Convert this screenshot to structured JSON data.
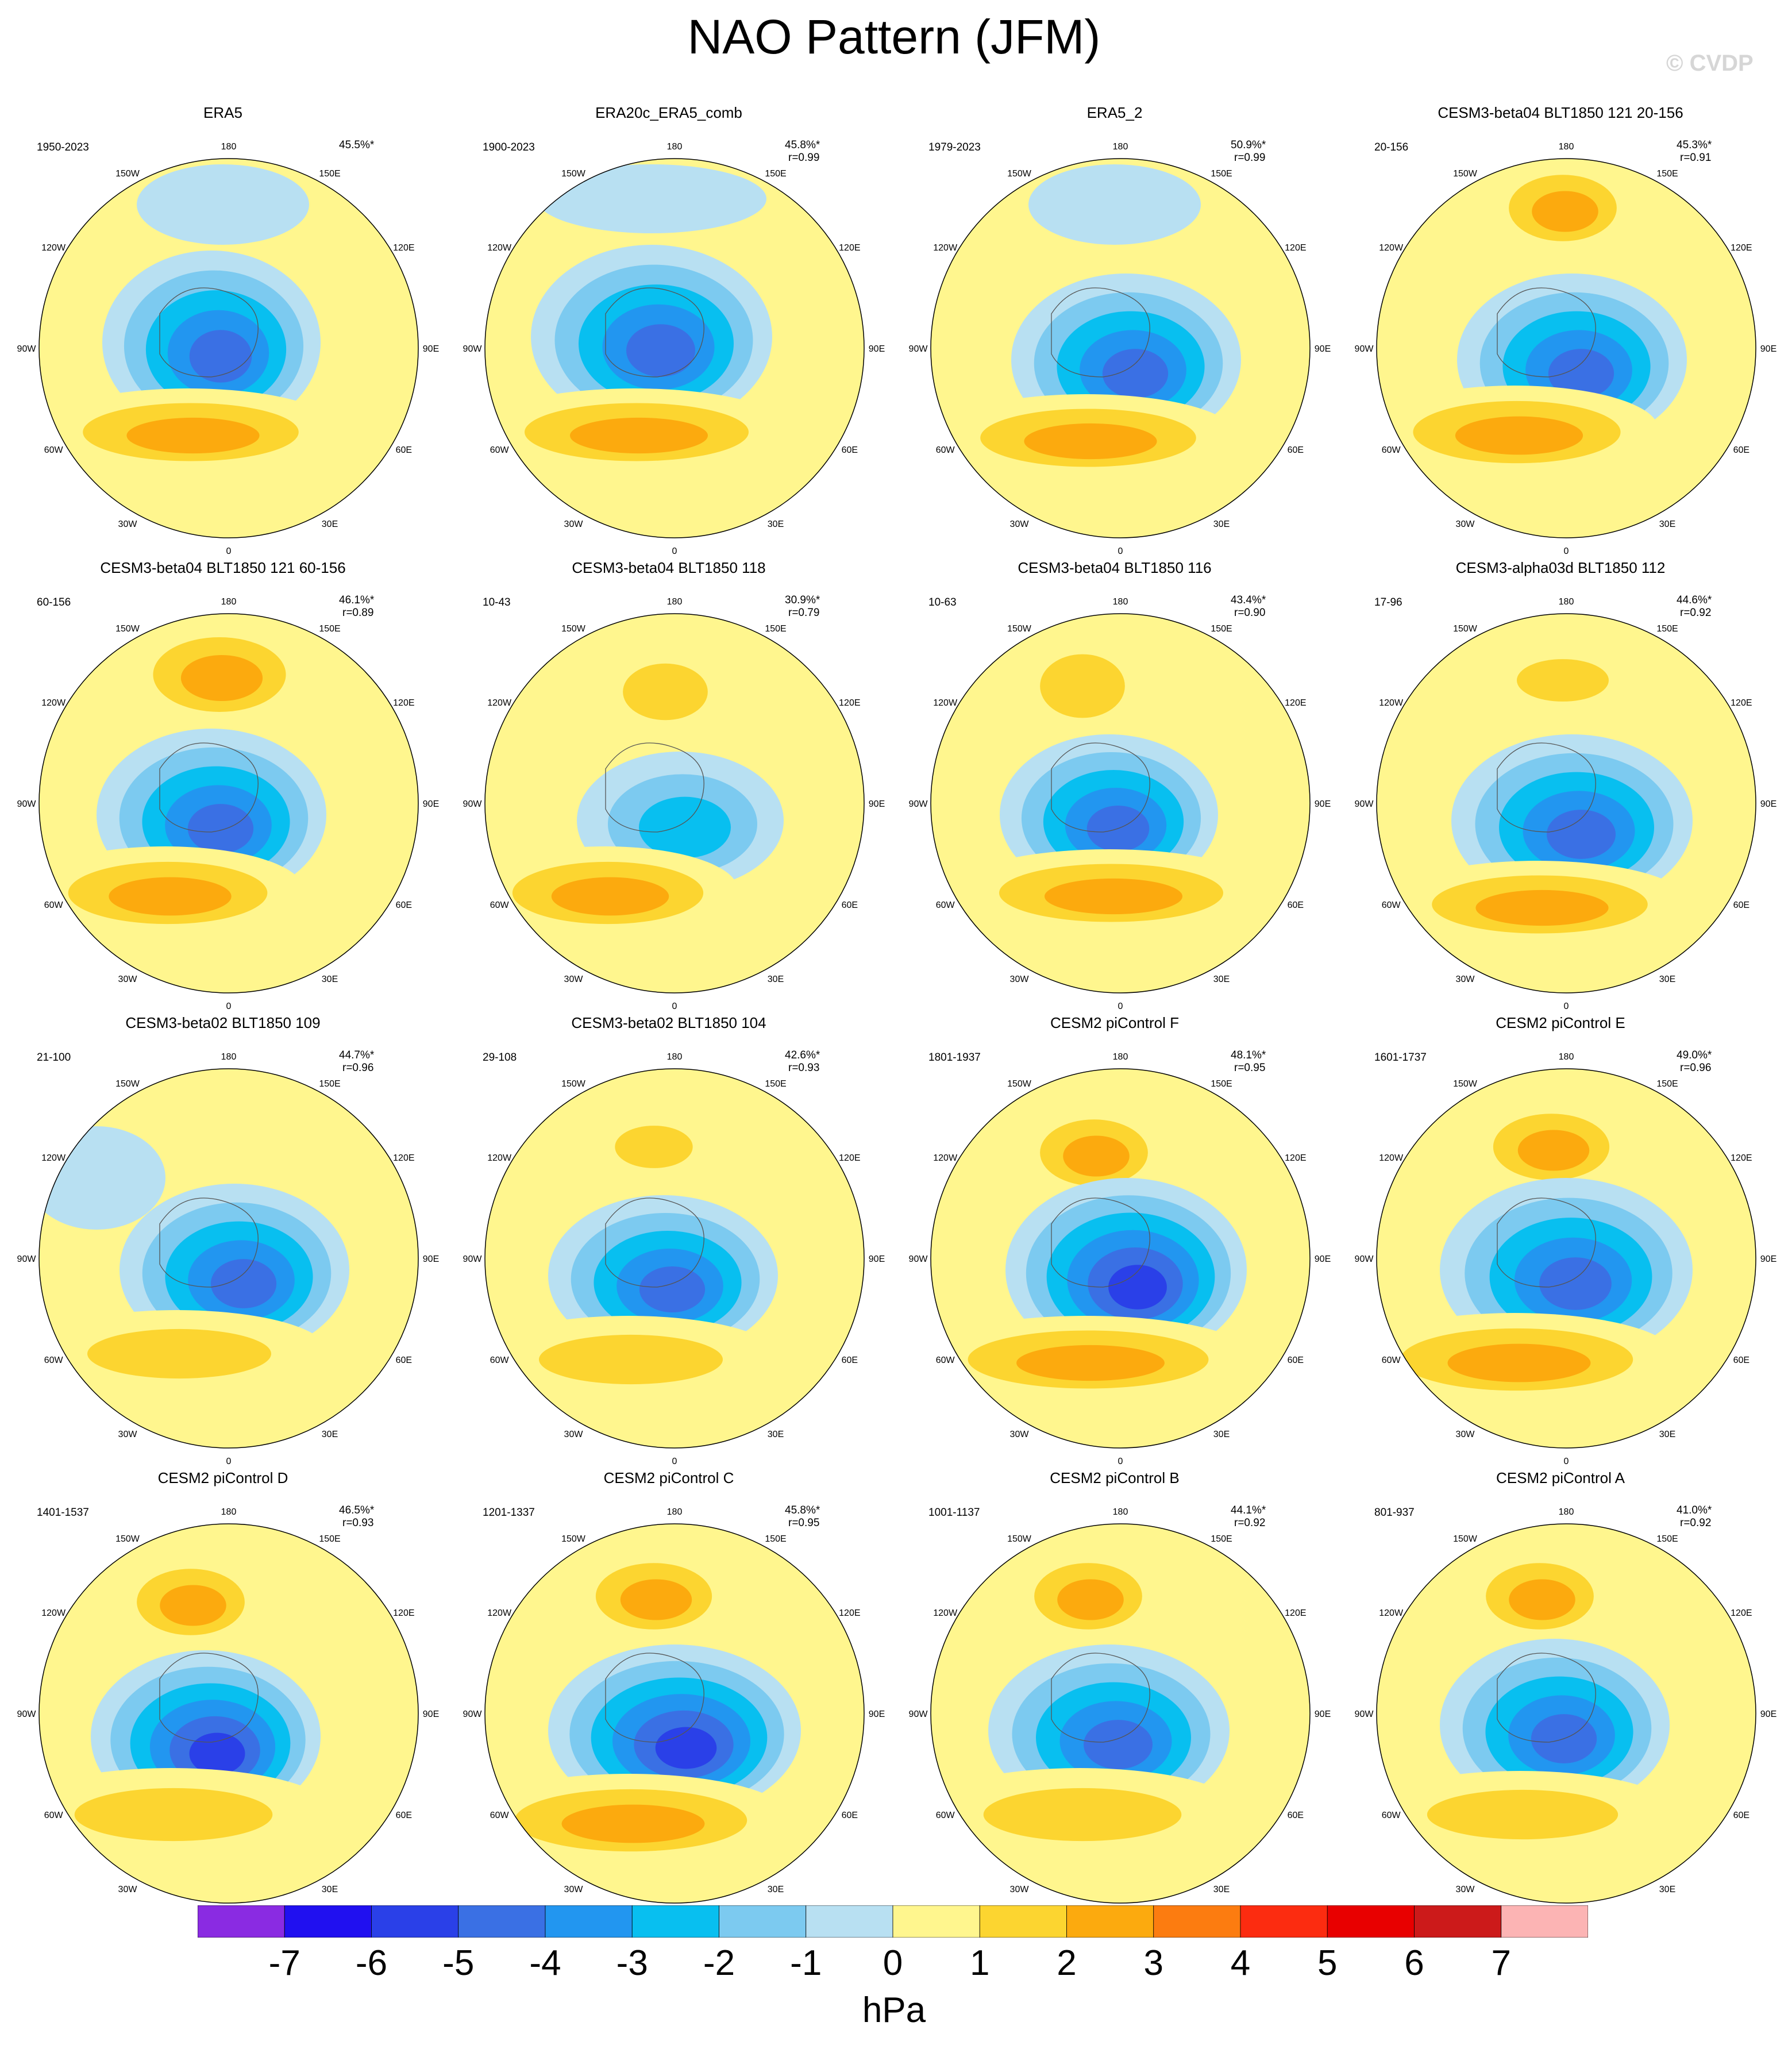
{
  "title": "NAO Pattern (JFM)",
  "watermark": "© CVDP",
  "colorbar": {
    "units": "hPa",
    "ticks": [
      "-7",
      "-6",
      "-5",
      "-4",
      "-3",
      "-2",
      "-1",
      "0",
      "1",
      "2",
      "3",
      "4",
      "5",
      "6",
      "7"
    ],
    "colors": [
      "#8a2be2",
      "#2010f0",
      "#2a40e8",
      "#3a70e4",
      "#2296f0",
      "#08bff0",
      "#7ccaf0",
      "#b8e0f2",
      "#fff68e",
      "#fcd530",
      "#fcaa0e",
      "#fc7c10",
      "#fc2c10",
      "#e80000",
      "#cc1a1a",
      "#fcb4b4"
    ]
  },
  "longitude_labels": [
    "180",
    "150E",
    "120E",
    "90E",
    "60E",
    "30E",
    "0",
    "30W",
    "60W",
    "90W",
    "120W",
    "150W"
  ],
  "panels": [
    {
      "title": "ERA5",
      "years": "1950-2023",
      "pct": "45.5%*",
      "r": ""
    },
    {
      "title": "ERA20c_ERA5_comb",
      "years": "1900-2023",
      "pct": "45.8%*",
      "r": "r=0.99"
    },
    {
      "title": "ERA5_2",
      "years": "1979-2023",
      "pct": "50.9%*",
      "r": "r=0.99"
    },
    {
      "title": "CESM3-beta04 BLT1850 121 20-156",
      "years": "20-156",
      "pct": "45.3%*",
      "r": "r=0.91"
    },
    {
      "title": "CESM3-beta04 BLT1850 121 60-156",
      "years": "60-156",
      "pct": "46.1%*",
      "r": "r=0.89"
    },
    {
      "title": "CESM3-beta04 BLT1850 118",
      "years": "10-43",
      "pct": "30.9%*",
      "r": "r=0.79"
    },
    {
      "title": "CESM3-beta04 BLT1850 116",
      "years": "10-63",
      "pct": "43.4%*",
      "r": "r=0.90"
    },
    {
      "title": "CESM3-alpha03d BLT1850 112",
      "years": "17-96",
      "pct": "44.6%*",
      "r": "r=0.92"
    },
    {
      "title": "CESM3-beta02 BLT1850 109",
      "years": "21-100",
      "pct": "44.7%*",
      "r": "r=0.96"
    },
    {
      "title": "CESM3-beta02 BLT1850 104",
      "years": "29-108",
      "pct": "42.6%*",
      "r": "r=0.93"
    },
    {
      "title": "CESM2 piControl F",
      "years": "1801-1937",
      "pct": "48.1%*",
      "r": "r=0.95"
    },
    {
      "title": "CESM2 piControl E",
      "years": "1601-1737",
      "pct": "49.0%*",
      "r": "r=0.96"
    },
    {
      "title": "CESM2 piControl D",
      "years": "1401-1537",
      "pct": "46.5%*",
      "r": "r=0.93"
    },
    {
      "title": "CESM2 piControl C",
      "years": "1201-1337",
      "pct": "45.8%*",
      "r": "r=0.95"
    },
    {
      "title": "CESM2 piControl B",
      "years": "1001-1137",
      "pct": "44.1%*",
      "r": "r=0.92"
    },
    {
      "title": "CESM2 piControl A",
      "years": "801-937",
      "pct": "41.0%*",
      "r": "r=0.92"
    }
  ]
}
